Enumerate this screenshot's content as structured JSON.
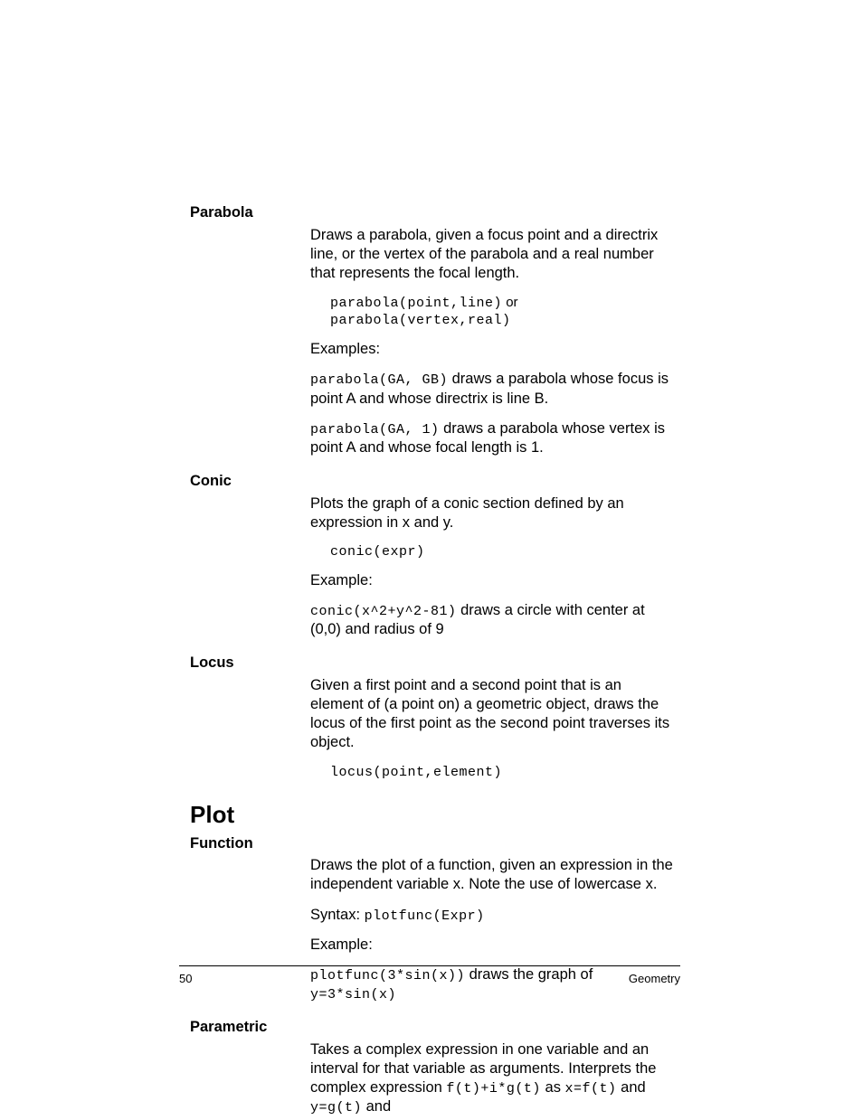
{
  "sections": {
    "parabola": {
      "label": "Parabola",
      "desc": "Draws a parabola, given a focus point and a directrix line, or the vertex of the parabola and a real number that represents the focal length.",
      "syntax_code1": "parabola(point,line)",
      "syntax_or": " or ",
      "syntax_code2": "parabola(vertex,real)",
      "examples_label": "Examples:",
      "ex1_code": "parabola(GA, GB)",
      "ex1_text": " draws a parabola whose focus is point A and whose directrix is line B.",
      "ex2_code": "parabola(GA, 1)",
      "ex2_text": " draws a parabola whose vertex is point A and whose focal length is 1."
    },
    "conic": {
      "label": "Conic",
      "desc": "Plots the graph of a conic section defined by an expression in x and y.",
      "syntax": "conic(expr)",
      "example_label": "Example:",
      "ex_code": "conic(x^2+y^2-81)",
      "ex_text": " draws a circle with center at (0,0) and radius of 9"
    },
    "locus": {
      "label": "Locus",
      "desc": "Given a first point and a second point that is an element of (a point on) a geometric object, draws the locus of the first point as the second point traverses its object.",
      "syntax": "locus(point,element)"
    },
    "plot_heading": "Plot",
    "function": {
      "label": "Function",
      "desc": "Draws the plot of a function, given an expression in the independent variable x. Note the use of lowercase x.",
      "syntax_label": "Syntax: ",
      "syntax_code": "plotfunc(Expr)",
      "example_label": "Example:",
      "ex_code": "plotfunc(3*sin(x))",
      "ex_text": " draws the graph of ",
      "ex_code2": "y=3*sin(x)"
    },
    "parametric": {
      "label": "Parametric",
      "desc_pre": "Takes a complex expression in one variable and an interval for that variable as arguments. Interprets the complex expression ",
      "code1": "f(t)+i*g(t)",
      "mid1": " as ",
      "code2": "x=f(t)",
      "mid2": " and ",
      "code3": "y=g(t)",
      "tail": " and"
    }
  },
  "footer": {
    "page_number": "50",
    "section_name": "Geometry"
  }
}
